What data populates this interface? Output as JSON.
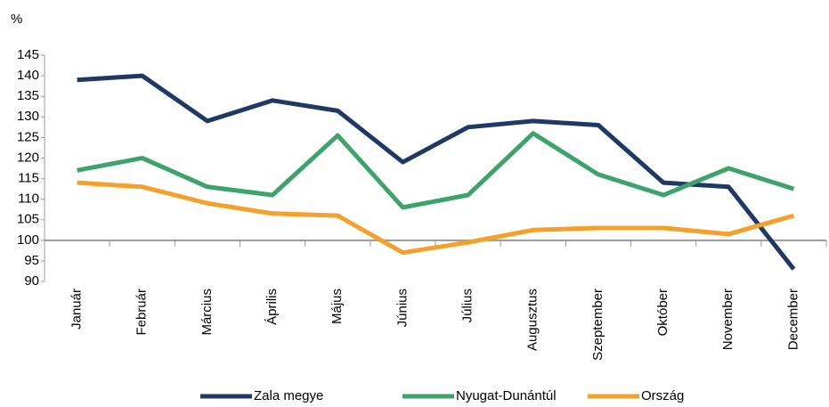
{
  "chart_data": {
    "type": "line",
    "y_unit": "%",
    "categories": [
      "Január",
      "Február",
      "Március",
      "Április",
      "Május",
      "Június",
      "Július",
      "Augusztus",
      "Szeptember",
      "Október",
      "November",
      "December"
    ],
    "series": [
      {
        "name": "Zala megye",
        "color": "#1f3864",
        "values": [
          139,
          140,
          129,
          134,
          131.5,
          119,
          127.5,
          129,
          128,
          114,
          113,
          93
        ]
      },
      {
        "name": "Nyugat-Dunántúl",
        "color": "#3ea36b",
        "values": [
          117,
          120,
          113,
          111,
          125.5,
          108,
          111,
          126,
          116,
          111,
          117.5,
          112.5
        ]
      },
      {
        "name": "Ország",
        "color": "#f5a02a",
        "values": [
          114,
          113,
          109,
          106.5,
          106,
          97,
          99.5,
          102.5,
          103,
          103,
          101.5,
          106
        ]
      }
    ],
    "ylim": [
      90,
      145
    ],
    "yticks": [
      90,
      95,
      100,
      105,
      110,
      115,
      120,
      125,
      130,
      135,
      140,
      145
    ],
    "xaxis_at": 100,
    "grid": false,
    "legend": "bottom"
  }
}
